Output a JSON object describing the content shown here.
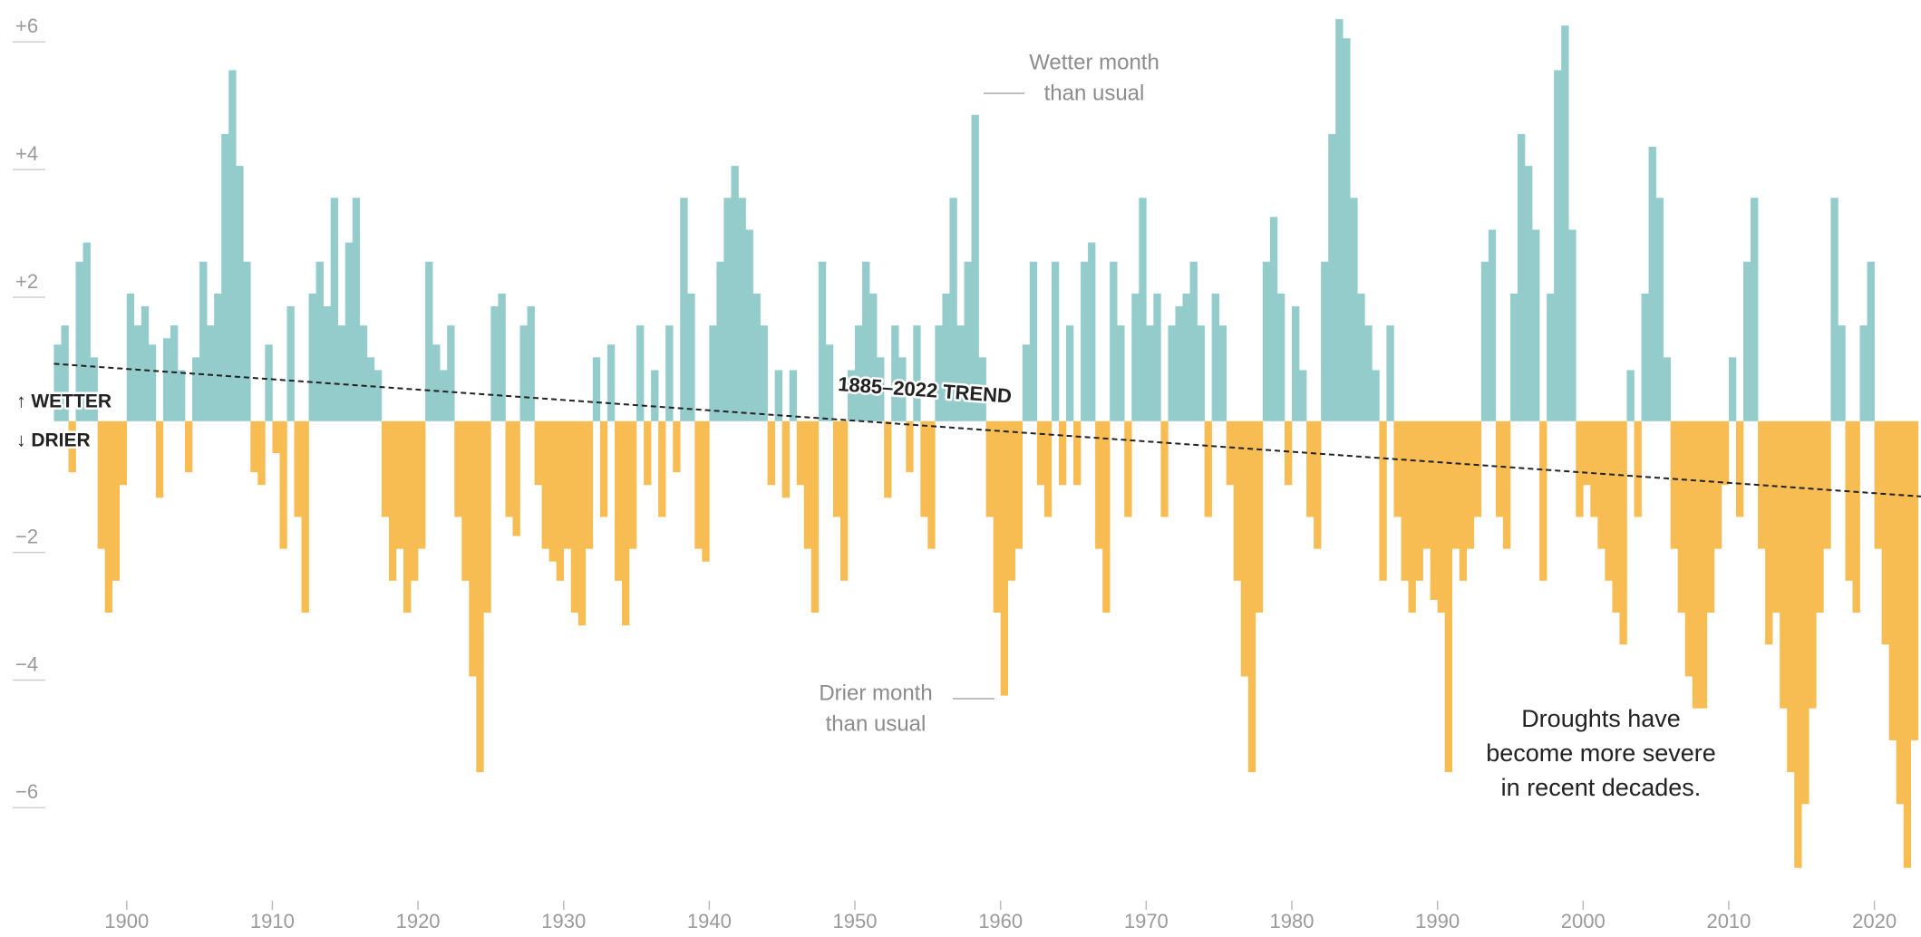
{
  "chart_data": {
    "type": "bar",
    "xlim": [
      1891.3,
      2023.2
    ],
    "ylim": [
      -7.6,
      6.6
    ],
    "xticks": [
      1900,
      1910,
      1920,
      1930,
      1940,
      1950,
      1960,
      1970,
      1980,
      1990,
      2000,
      2010,
      2020
    ],
    "yticks": [
      {
        "value": 6,
        "label": "+6"
      },
      {
        "value": 4,
        "label": "+4"
      },
      {
        "value": 2,
        "label": "+2"
      },
      {
        "value": -2,
        "label": "−2"
      },
      {
        "value": -4,
        "label": "−4"
      },
      {
        "value": -6,
        "label": "−6"
      }
    ],
    "direction_labels": {
      "up": "↑ WETTER",
      "down": "↓ DRIER"
    },
    "series": [
      {
        "positive_color": "#93cccb",
        "negative_color": "#f7bd52",
        "x": [
          1895,
          1895.5,
          1896,
          1896.5,
          1897,
          1897.5,
          1898,
          1898.5,
          1899,
          1899.5,
          1900,
          1900.5,
          1901,
          1901.5,
          1902,
          1902.5,
          1903,
          1903.5,
          1904,
          1904.5,
          1905,
          1905.5,
          1906,
          1906.5,
          1907,
          1907.5,
          1908,
          1908.5,
          1909,
          1909.5,
          1910,
          1910.5,
          1911,
          1911.5,
          1912,
          1912.5,
          1913,
          1913.5,
          1914,
          1914.5,
          1915,
          1915.5,
          1916,
          1916.5,
          1917,
          1917.5,
          1918,
          1918.5,
          1919,
          1919.5,
          1920,
          1920.5,
          1921,
          1921.5,
          1922,
          1922.5,
          1923,
          1923.5,
          1924,
          1924.5,
          1925,
          1925.5,
          1926,
          1926.5,
          1927,
          1927.5,
          1928,
          1928.5,
          1929,
          1929.5,
          1930,
          1930.5,
          1931,
          1931.5,
          1932,
          1932.5,
          1933,
          1933.5,
          1934,
          1934.5,
          1935,
          1935.5,
          1936,
          1936.5,
          1937,
          1937.5,
          1938,
          1938.5,
          1939,
          1939.5,
          1940,
          1940.5,
          1941,
          1941.5,
          1942,
          1942.5,
          1943,
          1943.5,
          1944,
          1944.5,
          1945,
          1945.5,
          1946,
          1946.5,
          1947,
          1947.5,
          1948,
          1948.5,
          1949,
          1949.5,
          1950,
          1950.5,
          1951,
          1951.5,
          1952,
          1952.5,
          1953,
          1953.5,
          1954,
          1954.5,
          1955,
          1955.5,
          1956,
          1956.5,
          1957,
          1957.5,
          1958,
          1958.5,
          1959,
          1959.5,
          1960,
          1960.5,
          1961,
          1961.5,
          1962,
          1962.5,
          1963,
          1963.5,
          1964,
          1964.5,
          1965,
          1965.5,
          1966,
          1966.5,
          1967,
          1967.5,
          1968,
          1968.5,
          1969,
          1969.5,
          1970,
          1970.5,
          1971,
          1971.5,
          1972,
          1972.5,
          1973,
          1973.5,
          1974,
          1974.5,
          1975,
          1975.5,
          1976,
          1976.5,
          1977,
          1977.5,
          1978,
          1978.5,
          1979,
          1979.5,
          1980,
          1980.5,
          1981,
          1981.5,
          1982,
          1982.5,
          1983,
          1983.5,
          1984,
          1984.5,
          1985,
          1985.5,
          1986,
          1986.5,
          1987,
          1987.5,
          1988,
          1988.5,
          1989,
          1989.5,
          1990,
          1990.5,
          1991,
          1991.5,
          1992,
          1992.5,
          1993,
          1993.5,
          1994,
          1994.5,
          1995,
          1995.5,
          1996,
          1996.5,
          1997,
          1997.5,
          1998,
          1998.5,
          1999,
          1999.5,
          2000,
          2000.5,
          2001,
          2001.5,
          2002,
          2002.5,
          2003,
          2003.5,
          2004,
          2004.5,
          2005,
          2005.5,
          2006,
          2006.5,
          2007,
          2007.5,
          2008,
          2008.5,
          2009,
          2009.5,
          2010,
          2010.5,
          2011,
          2011.5,
          2012,
          2012.5,
          2013,
          2013.5,
          2014,
          2014.5,
          2015,
          2015.5,
          2016,
          2016.5,
          2017,
          2017.5,
          2018,
          2018.5,
          2019,
          2019.5,
          2020,
          2020.5,
          2021,
          2021.5,
          2022,
          2022.5
        ],
        "values": [
          1.2,
          1.5,
          -0.8,
          2.5,
          2.8,
          1.0,
          -2.0,
          -3.0,
          -2.5,
          -1.0,
          2.0,
          1.5,
          1.8,
          1.2,
          -1.2,
          1.3,
          1.5,
          0.8,
          -0.8,
          1.0,
          2.5,
          1.5,
          2.0,
          4.5,
          5.5,
          4.0,
          2.5,
          -0.8,
          -1.0,
          1.2,
          -0.5,
          -2.0,
          1.8,
          -1.5,
          -3.0,
          2.0,
          2.5,
          1.8,
          3.5,
          1.5,
          2.8,
          3.5,
          1.5,
          1.0,
          0.8,
          -1.5,
          -2.5,
          -2.0,
          -3.0,
          -2.5,
          -2.0,
          2.5,
          1.2,
          0.8,
          1.5,
          -1.5,
          -2.5,
          -4.0,
          -5.5,
          -3.0,
          1.8,
          2.0,
          -1.5,
          -1.8,
          1.5,
          1.8,
          -1.0,
          -2.0,
          -2.2,
          -2.5,
          -2.0,
          -3.0,
          -3.2,
          -2.0,
          1.0,
          -1.5,
          1.2,
          -2.5,
          -3.2,
          -2.0,
          1.5,
          -1.0,
          0.8,
          -1.5,
          1.5,
          -0.8,
          3.5,
          2.0,
          -2.0,
          -2.2,
          1.5,
          2.5,
          3.5,
          4.0,
          3.5,
          3.0,
          2.0,
          1.5,
          -1.0,
          0.8,
          -1.2,
          0.8,
          -1.0,
          -2.0,
          -3.0,
          2.5,
          1.2,
          -1.5,
          -2.5,
          0.8,
          1.5,
          2.5,
          2.0,
          1.0,
          -1.2,
          1.5,
          1.0,
          -0.8,
          1.5,
          -1.5,
          -2.0,
          1.5,
          2.0,
          3.5,
          1.5,
          2.5,
          4.8,
          1.0,
          -1.5,
          -3.0,
          -4.3,
          -2.5,
          -2.0,
          1.2,
          2.5,
          -1.0,
          -1.5,
          2.5,
          -1.0,
          1.5,
          -1.0,
          2.5,
          2.8,
          -2.0,
          -3.0,
          2.5,
          1.5,
          -1.5,
          2.0,
          3.5,
          1.5,
          2.0,
          -1.5,
          1.5,
          1.8,
          2.0,
          2.5,
          1.5,
          -1.5,
          2.0,
          1.5,
          -1.0,
          -2.5,
          -4.0,
          -5.5,
          -3.0,
          2.5,
          3.2,
          2.0,
          -1.0,
          1.8,
          0.8,
          -1.5,
          -2.0,
          2.5,
          4.5,
          6.3,
          6.0,
          3.5,
          2.0,
          1.5,
          0.8,
          -2.5,
          1.5,
          -1.5,
          -2.5,
          -3.0,
          -2.5,
          -2.0,
          -2.8,
          -3.0,
          -5.5,
          -2.0,
          -2.5,
          -2.0,
          -1.5,
          2.5,
          3.0,
          -1.5,
          -2.0,
          2.0,
          4.5,
          4.0,
          3.0,
          -2.5,
          2.0,
          5.5,
          6.2,
          3.0,
          -1.5,
          -1.0,
          -1.5,
          -2.0,
          -2.5,
          -3.0,
          -3.5,
          0.8,
          -1.5,
          2.0,
          4.3,
          3.5,
          1.0,
          -2.0,
          -3.0,
          -4.0,
          -4.5,
          -4.5,
          -3.0,
          -2.0,
          -1.0,
          1.0,
          -1.5,
          2.5,
          3.5,
          -2.0,
          -3.5,
          -3.0,
          -4.5,
          -5.5,
          -7.0,
          -6.0,
          -4.5,
          -3.0,
          -2.0,
          3.5,
          1.5,
          -2.5,
          -3.0,
          1.5,
          2.5,
          -2.0,
          -3.5,
          -5.0,
          -6.0,
          -7.0,
          -5.0
        ]
      }
    ],
    "trend": {
      "name": "1885–2022 TREND",
      "color": "#222222",
      "x": [
        1895,
        2023.2
      ],
      "values": [
        0.9,
        -1.18
      ]
    },
    "annotations": [
      {
        "lines": [
          "Wetter month",
          "than usual"
        ]
      },
      {
        "lines": [
          "Drier month",
          "than usual"
        ]
      },
      {
        "lines": [
          "Droughts have",
          "become more severe",
          "in recent decades."
        ]
      }
    ]
  }
}
